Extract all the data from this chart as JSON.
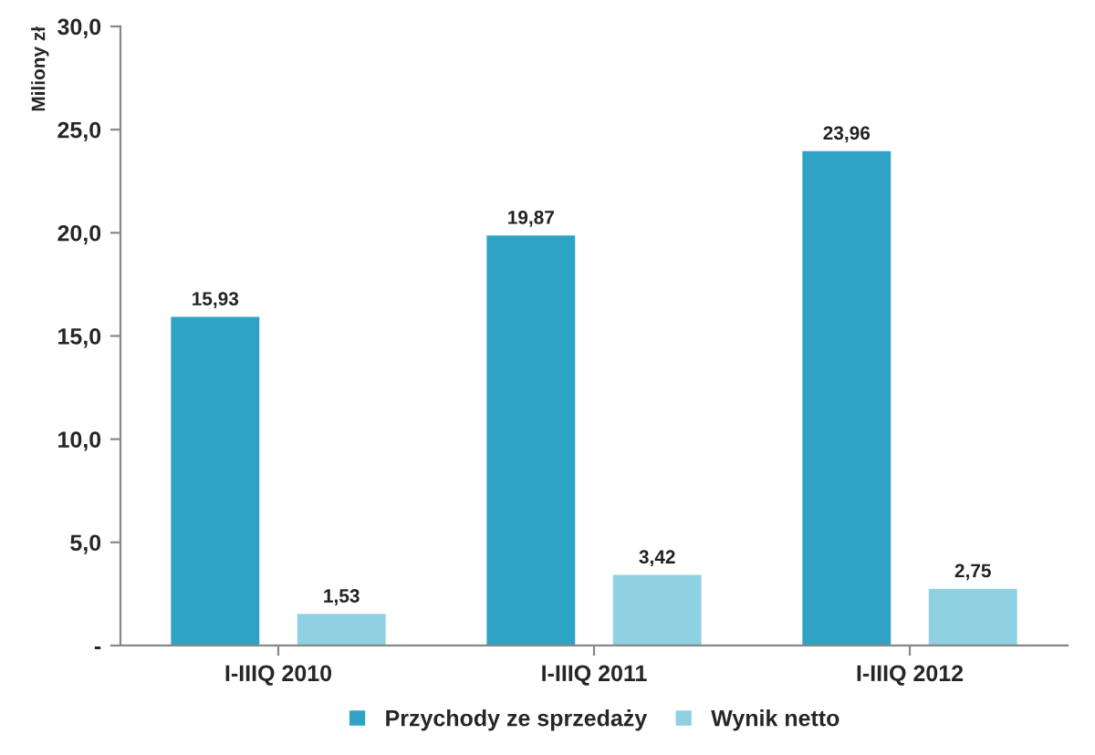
{
  "chart_data": {
    "type": "bar",
    "ylabel": "Miliony zł",
    "categories": [
      "I-IIIQ 2010",
      "I-IIIQ 2011",
      "I-IIIQ 2012"
    ],
    "series": [
      {
        "name": "Przychody ze sprzedaży",
        "color": "#2fa3c4",
        "values": [
          15.93,
          19.87,
          23.96
        ],
        "value_labels": [
          "15,93",
          "19,87",
          "23,96"
        ]
      },
      {
        "name": "Wynik netto",
        "color": "#8fd0e2",
        "values": [
          1.53,
          3.42,
          2.75
        ],
        "value_labels": [
          "1,53",
          "3,42",
          "2,75"
        ]
      }
    ],
    "ylim": [
      0,
      30
    ],
    "yticks": [
      {
        "value": 0,
        "label": "-"
      },
      {
        "value": 5,
        "label": "5,0"
      },
      {
        "value": 10,
        "label": "10,0"
      },
      {
        "value": 15,
        "label": "15,0"
      },
      {
        "value": 20,
        "label": "20,0"
      },
      {
        "value": 25,
        "label": "25,0"
      },
      {
        "value": 30,
        "label": "30,0"
      }
    ],
    "grid": false,
    "legend": "bottom"
  }
}
